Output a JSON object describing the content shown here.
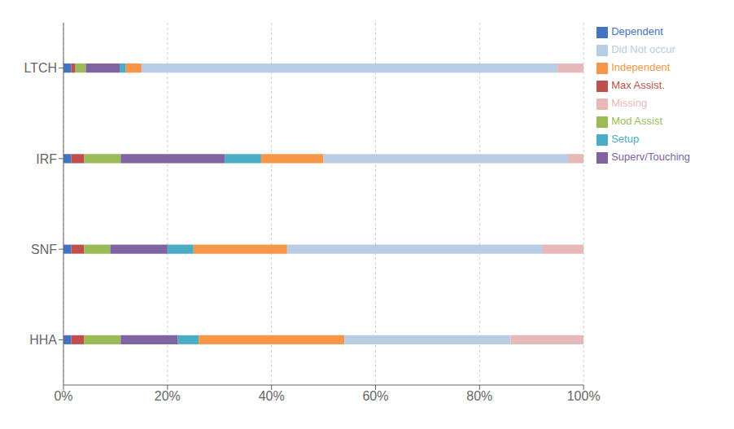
{
  "chart_data": {
    "type": "bar",
    "orientation": "horizontal",
    "stacked": true,
    "categories": [
      "LTCH",
      "IRF",
      "SNF",
      "HHA"
    ],
    "series": [
      {
        "name": "Dependent",
        "color": "#4472C4",
        "values": [
          1.5,
          1.5,
          1.5,
          1.5
        ]
      },
      {
        "name": "Max Assist.",
        "color": "#C0504D",
        "values": [
          0.8,
          2.5,
          2.5,
          2.5
        ]
      },
      {
        "name": "Mod Assist",
        "color": "#9BBB59",
        "values": [
          2.0,
          7.0,
          5.0,
          7.0
        ]
      },
      {
        "name": "Superv/Touching",
        "color": "#8064A2",
        "values": [
          6.5,
          20.0,
          11.0,
          11.0
        ]
      },
      {
        "name": "Setup",
        "color": "#4BACC6",
        "values": [
          1.2,
          7.0,
          5.0,
          4.0
        ]
      },
      {
        "name": "Independent",
        "color": "#F79646",
        "values": [
          3.0,
          12.0,
          18.0,
          28.0
        ]
      },
      {
        "name": "Did Not occur",
        "color": "#B8CCE4",
        "values": [
          80.0,
          47.0,
          49.0,
          32.0
        ]
      },
      {
        "name": "Missing",
        "color": "#E6B9B8",
        "values": [
          5.0,
          3.0,
          8.0,
          14.0
        ]
      }
    ],
    "xlim": [
      0,
      100
    ],
    "xticks": [
      {
        "value": 0,
        "label": "0%"
      },
      {
        "value": 20,
        "label": "20%"
      },
      {
        "value": 40,
        "label": "40%"
      },
      {
        "value": 60,
        "label": "60%"
      },
      {
        "value": 80,
        "label": "80%"
      },
      {
        "value": 100,
        "label": "100%"
      }
    ],
    "grid": true,
    "legend": "right"
  }
}
